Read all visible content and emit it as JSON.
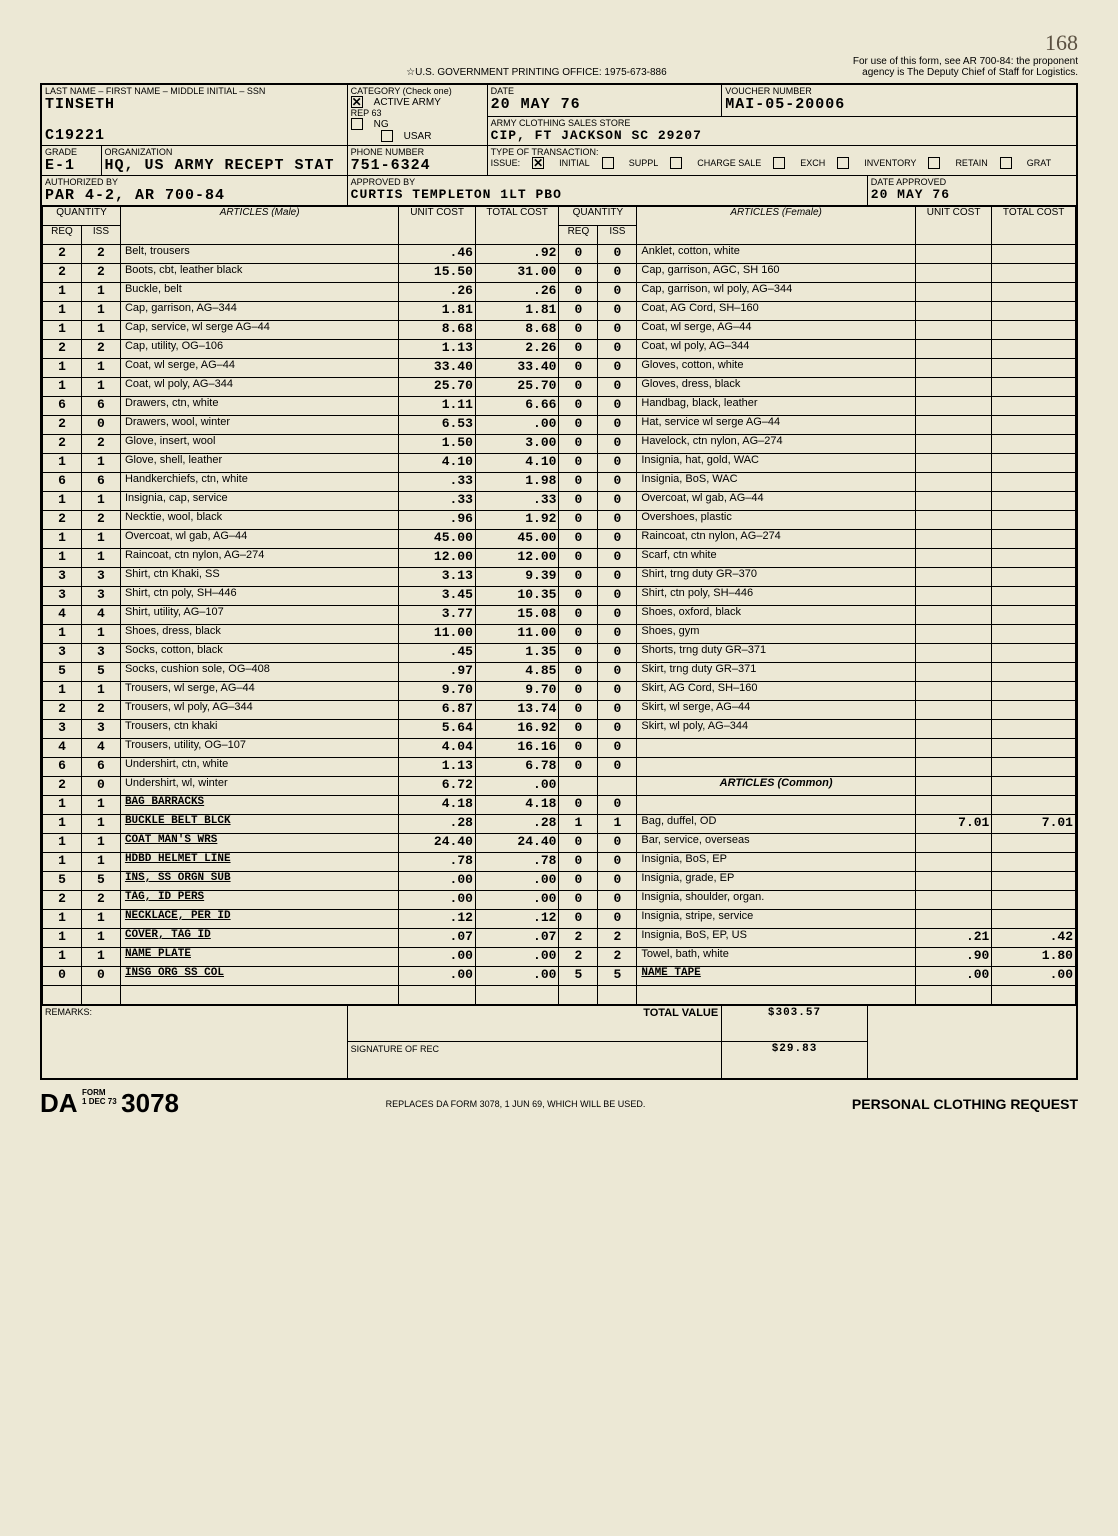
{
  "header": {
    "gpo": "☆U.S. GOVERNMENT PRINTING OFFICE: 1975-673-886",
    "note1": "For use of this form, see AR 700-84: the proponent",
    "note2": "agency is The Deputy Chief of Staff for Logistics.",
    "handnum": "168"
  },
  "info": {
    "name_label": "LAST NAME – FIRST NAME – MIDDLE INITIAL – SSN",
    "name": "TINSETH",
    "ssn": "C19221",
    "category_label": "CATEGORY (Check one)",
    "active_army": "ACTIVE ARMY",
    "rep63": "REP 63",
    "ng": "NG",
    "usar": "USAR",
    "date_label": "DATE",
    "date": "20 MAY 76",
    "voucher_label": "VOUCHER NUMBER",
    "voucher": "MAI-05-20006",
    "store": "ARMY CLOTHING SALES STORE",
    "store_addr": "CIP, FT JACKSON SC 29207",
    "grade_label": "GRADE",
    "grade": "E-1",
    "org_label": "ORGANIZATION",
    "org": "HQ, US ARMY RECEPT STAT",
    "phone_label": "PHONE NUMBER",
    "phone": "751-6324",
    "type_label": "TYPE OF TRANSACTION:",
    "issue": "ISSUE:",
    "initial": "INITIAL",
    "suppl": "SUPPL",
    "inventory": "INVENTORY",
    "retain": "RETAIN",
    "charge": "CHARGE SALE",
    "grat": "GRAT",
    "exch": "EXCH",
    "auth_label": "AUTHORIZED BY",
    "auth": "PAR 4-2, AR 700-84",
    "approved_label": "APPROVED BY",
    "approved": "CURTIS TEMPLETON 1LT PBO",
    "date_app_label": "DATE APPROVED",
    "date_app": "20 MAY 76"
  },
  "cols": {
    "qty": "QUANTITY",
    "req": "REQ",
    "iss": "ISS",
    "art_m": "ARTICLES (Male)",
    "art_f": "ARTICLES (Female)",
    "art_c": "ARTICLES (Common)",
    "ucost": "UNIT COST",
    "tcost": "TOTAL COST"
  },
  "male_items": [
    {
      "r": "2",
      "i": "2",
      "a": "Belt, trousers",
      "u": ".46",
      "t": ".92"
    },
    {
      "r": "2",
      "i": "2",
      "a": "Boots, cbt, leather black",
      "u": "15.50",
      "t": "31.00"
    },
    {
      "r": "1",
      "i": "1",
      "a": "Buckle, belt",
      "u": ".26",
      "t": ".26"
    },
    {
      "r": "1",
      "i": "1",
      "a": "Cap, garrison, AG–344",
      "u": "1.81",
      "t": "1.81"
    },
    {
      "r": "1",
      "i": "1",
      "a": "Cap, service, wl serge AG–44",
      "u": "8.68",
      "t": "8.68"
    },
    {
      "r": "2",
      "i": "2",
      "a": "Cap, utility, OG–106",
      "u": "1.13",
      "t": "2.26"
    },
    {
      "r": "1",
      "i": "1",
      "a": "Coat, wl serge, AG–44",
      "u": "33.40",
      "t": "33.40"
    },
    {
      "r": "1",
      "i": "1",
      "a": "Coat, wl poly, AG–344",
      "u": "25.70",
      "t": "25.70"
    },
    {
      "r": "6",
      "i": "6",
      "a": "Drawers, ctn, white",
      "u": "1.11",
      "t": "6.66"
    },
    {
      "r": "2",
      "i": "0",
      "a": "Drawers, wool, winter",
      "u": "6.53",
      "t": ".00"
    },
    {
      "r": "2",
      "i": "2",
      "a": "Glove, insert, wool",
      "u": "1.50",
      "t": "3.00"
    },
    {
      "r": "1",
      "i": "1",
      "a": "Glove, shell, leather",
      "u": "4.10",
      "t": "4.10"
    },
    {
      "r": "6",
      "i": "6",
      "a": "Handkerchiefs, ctn, white",
      "u": ".33",
      "t": "1.98"
    },
    {
      "r": "1",
      "i": "1",
      "a": "Insignia, cap, service",
      "u": ".33",
      "t": ".33"
    },
    {
      "r": "2",
      "i": "2",
      "a": "Necktie, wool, black",
      "u": ".96",
      "t": "1.92"
    },
    {
      "r": "1",
      "i": "1",
      "a": "Overcoat, wl gab, AG–44",
      "u": "45.00",
      "t": "45.00"
    },
    {
      "r": "1",
      "i": "1",
      "a": "Raincoat, ctn nylon, AG–274",
      "u": "12.00",
      "t": "12.00"
    },
    {
      "r": "3",
      "i": "3",
      "a": "Shirt, ctn Khaki, SS",
      "u": "3.13",
      "t": "9.39"
    },
    {
      "r": "3",
      "i": "3",
      "a": "Shirt, ctn poly, SH–446",
      "u": "3.45",
      "t": "10.35"
    },
    {
      "r": "4",
      "i": "4",
      "a": "Shirt, utility, AG–107",
      "u": "3.77",
      "t": "15.08"
    },
    {
      "r": "1",
      "i": "1",
      "a": "Shoes, dress, black",
      "u": "11.00",
      "t": "11.00"
    },
    {
      "r": "3",
      "i": "3",
      "a": "Socks, cotton, black",
      "u": ".45",
      "t": "1.35"
    },
    {
      "r": "5",
      "i": "5",
      "a": "Socks, cushion sole, OG–408",
      "u": ".97",
      "t": "4.85"
    },
    {
      "r": "1",
      "i": "1",
      "a": "Trousers, wl serge, AG–44",
      "u": "9.70",
      "t": "9.70"
    },
    {
      "r": "2",
      "i": "2",
      "a": "Trousers, wl poly, AG–344",
      "u": "6.87",
      "t": "13.74"
    },
    {
      "r": "3",
      "i": "3",
      "a": "Trousers, ctn khaki",
      "u": "5.64",
      "t": "16.92"
    },
    {
      "r": "4",
      "i": "4",
      "a": "Trousers, utility, OG–107",
      "u": "4.04",
      "t": "16.16"
    },
    {
      "r": "6",
      "i": "6",
      "a": "Undershirt, ctn, white",
      "u": "1.13",
      "t": "6.78"
    },
    {
      "r": "2",
      "i": "0",
      "a": "Undershirt, wl, winter",
      "u": "6.72",
      "t": ".00"
    },
    {
      "r": "1",
      "i": "1",
      "a": "BAG BARRACKS",
      "u": "4.18",
      "t": "4.18",
      "typed": true
    },
    {
      "r": "1",
      "i": "1",
      "a": "BUCKLE BELT BLCK",
      "u": ".28",
      "t": ".28",
      "typed": true
    },
    {
      "r": "1",
      "i": "1",
      "a": "COAT MAN'S WRS",
      "u": "24.40",
      "t": "24.40",
      "typed": true
    },
    {
      "r": "1",
      "i": "1",
      "a": "HDBD HELMET LINE",
      "u": ".78",
      "t": ".78",
      "typed": true
    },
    {
      "r": "5",
      "i": "5",
      "a": "INS, SS ORGN SUB",
      "u": ".00",
      "t": ".00",
      "typed": true
    },
    {
      "r": "2",
      "i": "2",
      "a": "TAG, ID PERS",
      "u": ".00",
      "t": ".00",
      "typed": true
    },
    {
      "r": "1",
      "i": "1",
      "a": "NECKLACE, PER ID",
      "u": ".12",
      "t": ".12",
      "typed": true
    },
    {
      "r": "1",
      "i": "1",
      "a": "COVER, TAG ID",
      "u": ".07",
      "t": ".07",
      "typed": true
    },
    {
      "r": "1",
      "i": "1",
      "a": "NAME PLATE",
      "u": ".00",
      "t": ".00",
      "typed": true
    },
    {
      "r": "0",
      "i": "0",
      "a": "INSG ORG SS COL",
      "u": ".00",
      "t": ".00",
      "typed": true
    }
  ],
  "female_items": [
    {
      "r": "0",
      "i": "0",
      "a": "Anklet, cotton, white"
    },
    {
      "r": "0",
      "i": "0",
      "a": "Cap, garrison, AGC, SH 160"
    },
    {
      "r": "0",
      "i": "0",
      "a": "Cap, garrison, wl poly, AG–344"
    },
    {
      "r": "0",
      "i": "0",
      "a": "Coat, AG Cord, SH–160"
    },
    {
      "r": "0",
      "i": "0",
      "a": "Coat, wl serge, AG–44"
    },
    {
      "r": "0",
      "i": "0",
      "a": "Coat, wl poly, AG–344"
    },
    {
      "r": "0",
      "i": "0",
      "a": "Gloves, cotton, white"
    },
    {
      "r": "0",
      "i": "0",
      "a": "Gloves, dress, black"
    },
    {
      "r": "0",
      "i": "0",
      "a": "Handbag, black, leather"
    },
    {
      "r": "0",
      "i": "0",
      "a": "Hat, service wl serge AG–44"
    },
    {
      "r": "0",
      "i": "0",
      "a": "Havelock, ctn nylon, AG–274"
    },
    {
      "r": "0",
      "i": "0",
      "a": "Insignia, hat, gold, WAC"
    },
    {
      "r": "0",
      "i": "0",
      "a": "Insignia, BoS, WAC"
    },
    {
      "r": "0",
      "i": "0",
      "a": "Overcoat, wl gab, AG–44"
    },
    {
      "r": "0",
      "i": "0",
      "a": "Overshoes, plastic"
    },
    {
      "r": "0",
      "i": "0",
      "a": "Raincoat, ctn nylon, AG–274"
    },
    {
      "r": "0",
      "i": "0",
      "a": "Scarf, ctn white"
    },
    {
      "r": "0",
      "i": "0",
      "a": "Shirt, trng duty GR–370"
    },
    {
      "r": "0",
      "i": "0",
      "a": "Shirt, ctn poly, SH–446"
    },
    {
      "r": "0",
      "i": "0",
      "a": "Shoes, oxford, black"
    },
    {
      "r": "0",
      "i": "0",
      "a": "Shoes, gym"
    },
    {
      "r": "0",
      "i": "0",
      "a": "Shorts, trng duty GR–371"
    },
    {
      "r": "0",
      "i": "0",
      "a": "Skirt, trng duty GR–371"
    },
    {
      "r": "0",
      "i": "0",
      "a": "Skirt, AG Cord, SH–160"
    },
    {
      "r": "0",
      "i": "0",
      "a": "Skirt, wl serge, AG–44"
    },
    {
      "r": "0",
      "i": "0",
      "a": "Skirt, wl poly, AG–344"
    },
    {
      "r": "0",
      "i": "0",
      "a": ""
    },
    {
      "r": "0",
      "i": "0",
      "a": ""
    }
  ],
  "common_items": [
    {
      "r": "0",
      "i": "0",
      "a": ""
    },
    {
      "r": "1",
      "i": "1",
      "a": "Bag, duffel, OD",
      "u": "7.01",
      "t": "7.01"
    },
    {
      "r": "0",
      "i": "0",
      "a": "Bar, service, overseas"
    },
    {
      "r": "0",
      "i": "0",
      "a": "Insignia, BoS, EP"
    },
    {
      "r": "0",
      "i": "0",
      "a": "Insignia, grade, EP"
    },
    {
      "r": "0",
      "i": "0",
      "a": "Insignia, shoulder, organ."
    },
    {
      "r": "0",
      "i": "0",
      "a": "Insignia, stripe, service"
    },
    {
      "r": "2",
      "i": "2",
      "a": "Insignia, BoS, EP, US",
      "u": ".21",
      "t": ".42"
    },
    {
      "r": "2",
      "i": "2",
      "a": "Towel, bath, white",
      "u": ".90",
      "t": "1.80"
    },
    {
      "r": "5",
      "i": "5",
      "a": "NAME TAPE",
      "u": ".00",
      "t": ".00",
      "typed": true
    },
    {
      "r": "0",
      "i": "0",
      "a": ""
    }
  ],
  "totals": {
    "label": "TOTAL VALUE",
    "value": "$303.57",
    "value2": "$29.83",
    "remarks": "REMARKS:",
    "sig": "SIGNATURE OF REC"
  },
  "footer": {
    "da": "DA",
    "form": "FORM",
    "date": "1 DEC 73",
    "num": "3078",
    "replaces": "REPLACES DA FORM 3078, 1 JUN 69, WHICH WILL BE USED.",
    "title": "PERSONAL CLOTHING REQUEST"
  }
}
